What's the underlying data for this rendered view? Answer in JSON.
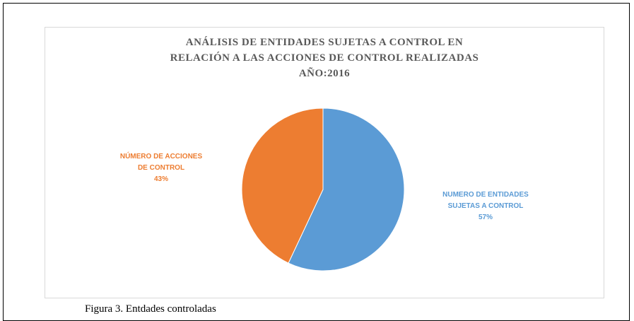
{
  "chart_data": {
    "type": "pie",
    "title": [
      "ANÁLISIS DE ENTIDADES SUJETAS A CONTROL EN",
      "RELACIÓN A LAS ACCIONES DE CONTROL REALIZADAS",
      "AÑO:2016"
    ],
    "categories": [
      "NUMERO DE ENTIDADES SUJETAS A CONTROL",
      "NÚMERO DE ACCIONES DE CONTROL"
    ],
    "values": [
      57,
      43
    ],
    "value_labels": [
      "57%",
      "43%"
    ],
    "colors": [
      "#5b9bd5",
      "#ed7d31"
    ]
  },
  "caption": "Figura 3. Entdades controladas"
}
